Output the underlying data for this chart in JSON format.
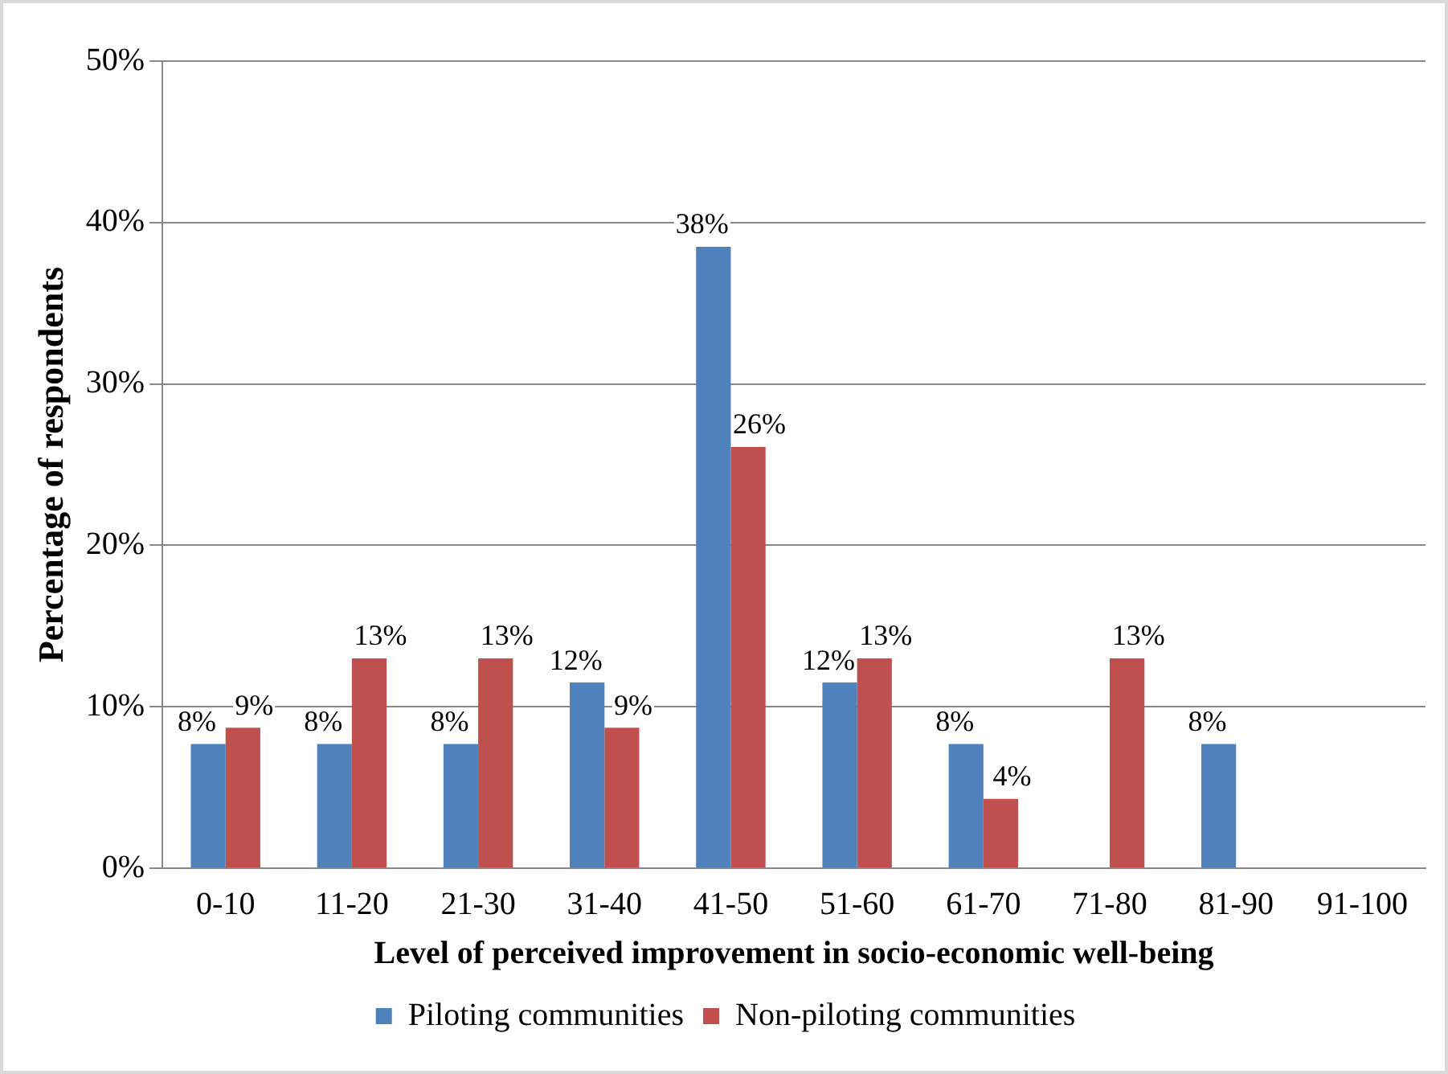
{
  "chart_data": {
    "type": "bar",
    "xlabel": "Level of perceived improvement in socio-economic well-being",
    "ylabel": "Percentage of respondents",
    "categories": [
      "0-10",
      "11-20",
      "21-30",
      "31-40",
      "41-50",
      "51-60",
      "61-70",
      "71-80",
      "81-90",
      "91-100"
    ],
    "series": [
      {
        "name": "Piloting communities",
        "color": "#4f81bd",
        "values": [
          7.7,
          7.7,
          7.7,
          11.5,
          38.5,
          11.5,
          7.7,
          null,
          7.7,
          null
        ],
        "value_labels": [
          "8%",
          "8%",
          "8%",
          "12%",
          "38%",
          "12%",
          "8%",
          null,
          "8%",
          null
        ]
      },
      {
        "name": "Non-piloting communities",
        "color": "#c0504d",
        "values": [
          8.7,
          13,
          13,
          8.7,
          26.1,
          13,
          4.3,
          13,
          null,
          null
        ],
        "value_labels": [
          "9%",
          "13%",
          "13%",
          "9%",
          "26%",
          "13%",
          "4%",
          "13%",
          null,
          null
        ]
      }
    ],
    "ylim": [
      0,
      50
    ],
    "yticks": [
      {
        "value": 0,
        "label": "0%"
      },
      {
        "value": 10,
        "label": "10%"
      },
      {
        "value": 20,
        "label": "20%"
      },
      {
        "value": 30,
        "label": "30%"
      },
      {
        "value": 40,
        "label": "40%"
      },
      {
        "value": 50,
        "label": "50%"
      }
    ],
    "grid": "y",
    "legend": "bottom"
  }
}
